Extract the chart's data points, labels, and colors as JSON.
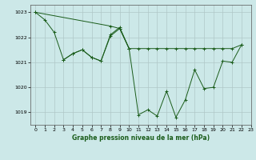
{
  "title": "Graphe pression niveau de la mer (hPa)",
  "background_color": "#cce8e8",
  "grid_color": "#b0c8c8",
  "line_color": "#1a5c1a",
  "xlim": [
    -0.5,
    23
  ],
  "ylim": [
    1018.5,
    1023.3
  ],
  "yticks": [
    1019,
    1020,
    1021,
    1022,
    1023
  ],
  "xticks": [
    0,
    1,
    2,
    3,
    4,
    5,
    6,
    7,
    8,
    9,
    10,
    11,
    12,
    13,
    14,
    15,
    16,
    17,
    18,
    19,
    20,
    21,
    22,
    23
  ],
  "line_series": [
    {
      "x": [
        0,
        1,
        2,
        3,
        4,
        5,
        6,
        7,
        8,
        9,
        10,
        11,
        12,
        13,
        14,
        15,
        16,
        17,
        18,
        19,
        20,
        21,
        22
      ],
      "y": [
        1023.0,
        1022.7,
        1022.2,
        1021.1,
        1021.35,
        1021.5,
        1021.2,
        1021.05,
        1022.1,
        1022.4,
        1021.55,
        1018.9,
        1019.1,
        1018.85,
        1019.85,
        1018.8,
        1019.5,
        1020.7,
        1019.95,
        1020.0,
        1021.05,
        1021.0,
        1021.7
      ]
    },
    {
      "x": [
        3,
        4,
        5,
        6,
        7,
        8,
        9,
        10
      ],
      "y": [
        1021.1,
        1021.35,
        1021.5,
        1021.2,
        1021.05,
        1022.05,
        1022.35,
        1021.55
      ]
    },
    {
      "x": [
        0,
        8,
        9,
        10,
        11,
        12,
        13,
        14,
        15,
        16,
        17,
        18,
        19,
        20,
        21,
        22
      ],
      "y": [
        1023.0,
        1022.45,
        1022.35,
        1021.55,
        1021.55,
        1021.55,
        1021.55,
        1021.55,
        1021.55,
        1021.55,
        1021.55,
        1021.55,
        1021.55,
        1021.55,
        1021.55,
        1021.7
      ]
    }
  ]
}
